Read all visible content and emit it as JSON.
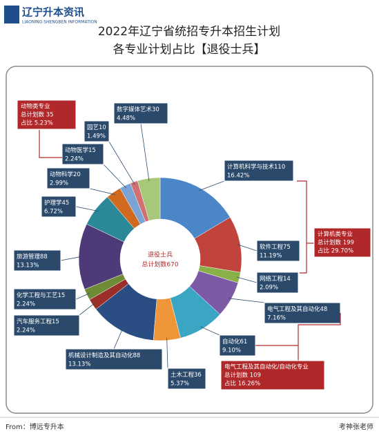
{
  "header": {
    "logo": "辽宁升本资讯",
    "logo_sub": "LIAONING SHENGBEN INFORMATION"
  },
  "chart_data": {
    "type": "donut",
    "title": "2022年辽宁省统招专升本招生计划",
    "subtitle": "各专业计划占比【退役士兵】",
    "center_title": "退役士兵",
    "center_label": "总计划数670",
    "categories": [
      "计算机科学与技术",
      "软件工程",
      "网络工程",
      "电气工程及其自动化",
      "自动化",
      "土木工程",
      "机械设计制造及其自动化",
      "汽车服务工程",
      "化学工程与工艺",
      "旅游管理",
      "护理学",
      "动物科学",
      "动物医学",
      "园艺",
      "数字媒体艺术"
    ],
    "counts": [
      110,
      75,
      14,
      48,
      61,
      36,
      88,
      15,
      15,
      88,
      45,
      20,
      15,
      10,
      30
    ],
    "values": [
      16.42,
      11.19,
      2.09,
      7.16,
      9.1,
      5.37,
      13.13,
      2.24,
      2.24,
      13.13,
      6.72,
      2.99,
      2.24,
      1.49,
      4.48
    ],
    "value_labels": [
      "16.42%",
      "11.19%",
      "2.09%",
      "7.16%",
      "9.10%",
      "5.37%",
      "13.13%",
      "2.24%",
      "2.24%",
      "13.13%",
      "6.72%",
      "2.99%",
      "2.24%",
      "1.49%",
      "4.48%"
    ],
    "colors": [
      "#4a86c8",
      "#c0443c",
      "#8ab04a",
      "#7c5aa6",
      "#3aa6c4",
      "#f0963a",
      "#2a4e84",
      "#9c2e2a",
      "#6e8c36",
      "#4e3a78",
      "#2a8898",
      "#d06a1e",
      "#7aa4d6",
      "#d07070",
      "#a6c878"
    ],
    "groups": [
      {
        "lines": [
          "动物类专业",
          "总计划数 35",
          "占比 5.23%"
        ]
      },
      {
        "lines": [
          "计算机类专业",
          "总计划数 199",
          "占比 29.70%"
        ]
      },
      {
        "lines": [
          "电气工程及其自动化/自动化专业",
          "总计划数 109",
          "占比 16.26%"
        ]
      }
    ]
  },
  "footer": {
    "source": "From：博远专升本",
    "author": "考神张老师"
  }
}
